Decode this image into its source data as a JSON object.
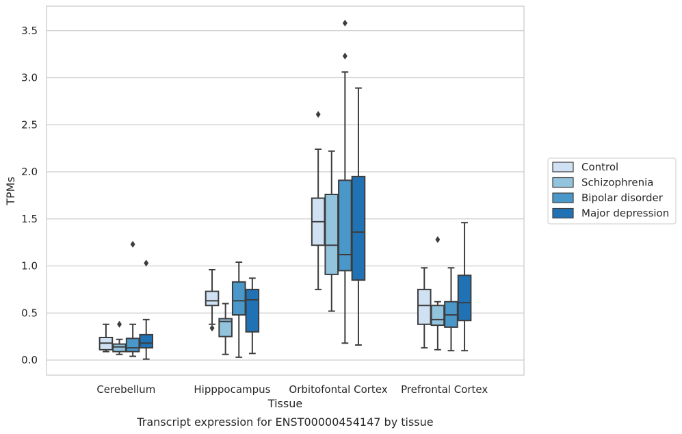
{
  "caption": "Transcript expression for ENST00000454147 by tissue",
  "chart_data": {
    "type": "boxplot",
    "xlabel": "Tissue",
    "ylabel": "TPMs",
    "ylim": [
      -0.16,
      3.76
    ],
    "yticks": [
      "0.0",
      "0.5",
      "1.0",
      "1.5",
      "2.0",
      "2.5",
      "3.0",
      "3.5"
    ],
    "grid": true,
    "legend_position": "right",
    "categories": [
      "Cerebellum",
      "Hipppocampus",
      "Orbitofontal Cortex",
      "Prefrontal Cortex"
    ],
    "series": [
      {
        "name": "Control",
        "color": "#cfe1f2",
        "boxes": [
          {
            "whislo": 0.09,
            "q1": 0.11,
            "med": 0.18,
            "q3": 0.24,
            "whishi": 0.38,
            "fliers": []
          },
          {
            "whislo": 0.38,
            "q1": 0.58,
            "med": 0.63,
            "q3": 0.73,
            "whishi": 0.96,
            "fliers": [
              0.34
            ]
          },
          {
            "whislo": 0.75,
            "q1": 1.22,
            "med": 1.47,
            "q3": 1.72,
            "whishi": 2.24,
            "fliers": [
              2.61
            ]
          },
          {
            "whislo": 0.13,
            "q1": 0.38,
            "med": 0.58,
            "q3": 0.75,
            "whishi": 0.98,
            "fliers": []
          }
        ]
      },
      {
        "name": "Schizophrenia",
        "color": "#93c4de",
        "boxes": [
          {
            "whislo": 0.06,
            "q1": 0.09,
            "med": 0.14,
            "q3": 0.17,
            "whishi": 0.22,
            "fliers": [
              0.38
            ]
          },
          {
            "whislo": 0.06,
            "q1": 0.25,
            "med": 0.41,
            "q3": 0.44,
            "whishi": 0.6,
            "fliers": []
          },
          {
            "whislo": 0.52,
            "q1": 0.91,
            "med": 1.22,
            "q3": 1.76,
            "whishi": 2.22,
            "fliers": []
          },
          {
            "whislo": 0.11,
            "q1": 0.37,
            "med": 0.43,
            "q3": 0.58,
            "whishi": 0.62,
            "fliers": [
              1.28
            ]
          }
        ]
      },
      {
        "name": "Bipolar disorder",
        "color": "#4a98c9",
        "boxes": [
          {
            "whislo": 0.04,
            "q1": 0.09,
            "med": 0.13,
            "q3": 0.23,
            "whishi": 0.38,
            "fliers": [
              1.23
            ]
          },
          {
            "whislo": 0.03,
            "q1": 0.48,
            "med": 0.63,
            "q3": 0.83,
            "whishi": 1.04,
            "fliers": []
          },
          {
            "whislo": 0.18,
            "q1": 0.95,
            "med": 1.12,
            "q3": 1.91,
            "whishi": 3.06,
            "fliers": [
              3.23,
              3.58
            ]
          },
          {
            "whislo": 0.1,
            "q1": 0.35,
            "med": 0.48,
            "q3": 0.62,
            "whishi": 0.98,
            "fliers": []
          }
        ]
      },
      {
        "name": "Major depression",
        "color": "#2171b5",
        "boxes": [
          {
            "whislo": 0.01,
            "q1": 0.13,
            "med": 0.18,
            "q3": 0.27,
            "whishi": 0.43,
            "fliers": [
              1.03
            ]
          },
          {
            "whislo": 0.07,
            "q1": 0.3,
            "med": 0.64,
            "q3": 0.75,
            "whishi": 0.87,
            "fliers": []
          },
          {
            "whislo": 0.16,
            "q1": 0.85,
            "med": 1.36,
            "q3": 1.95,
            "whishi": 2.89,
            "fliers": []
          },
          {
            "whislo": 0.1,
            "q1": 0.42,
            "med": 0.61,
            "q3": 0.9,
            "whishi": 1.46,
            "fliers": []
          }
        ]
      }
    ]
  }
}
